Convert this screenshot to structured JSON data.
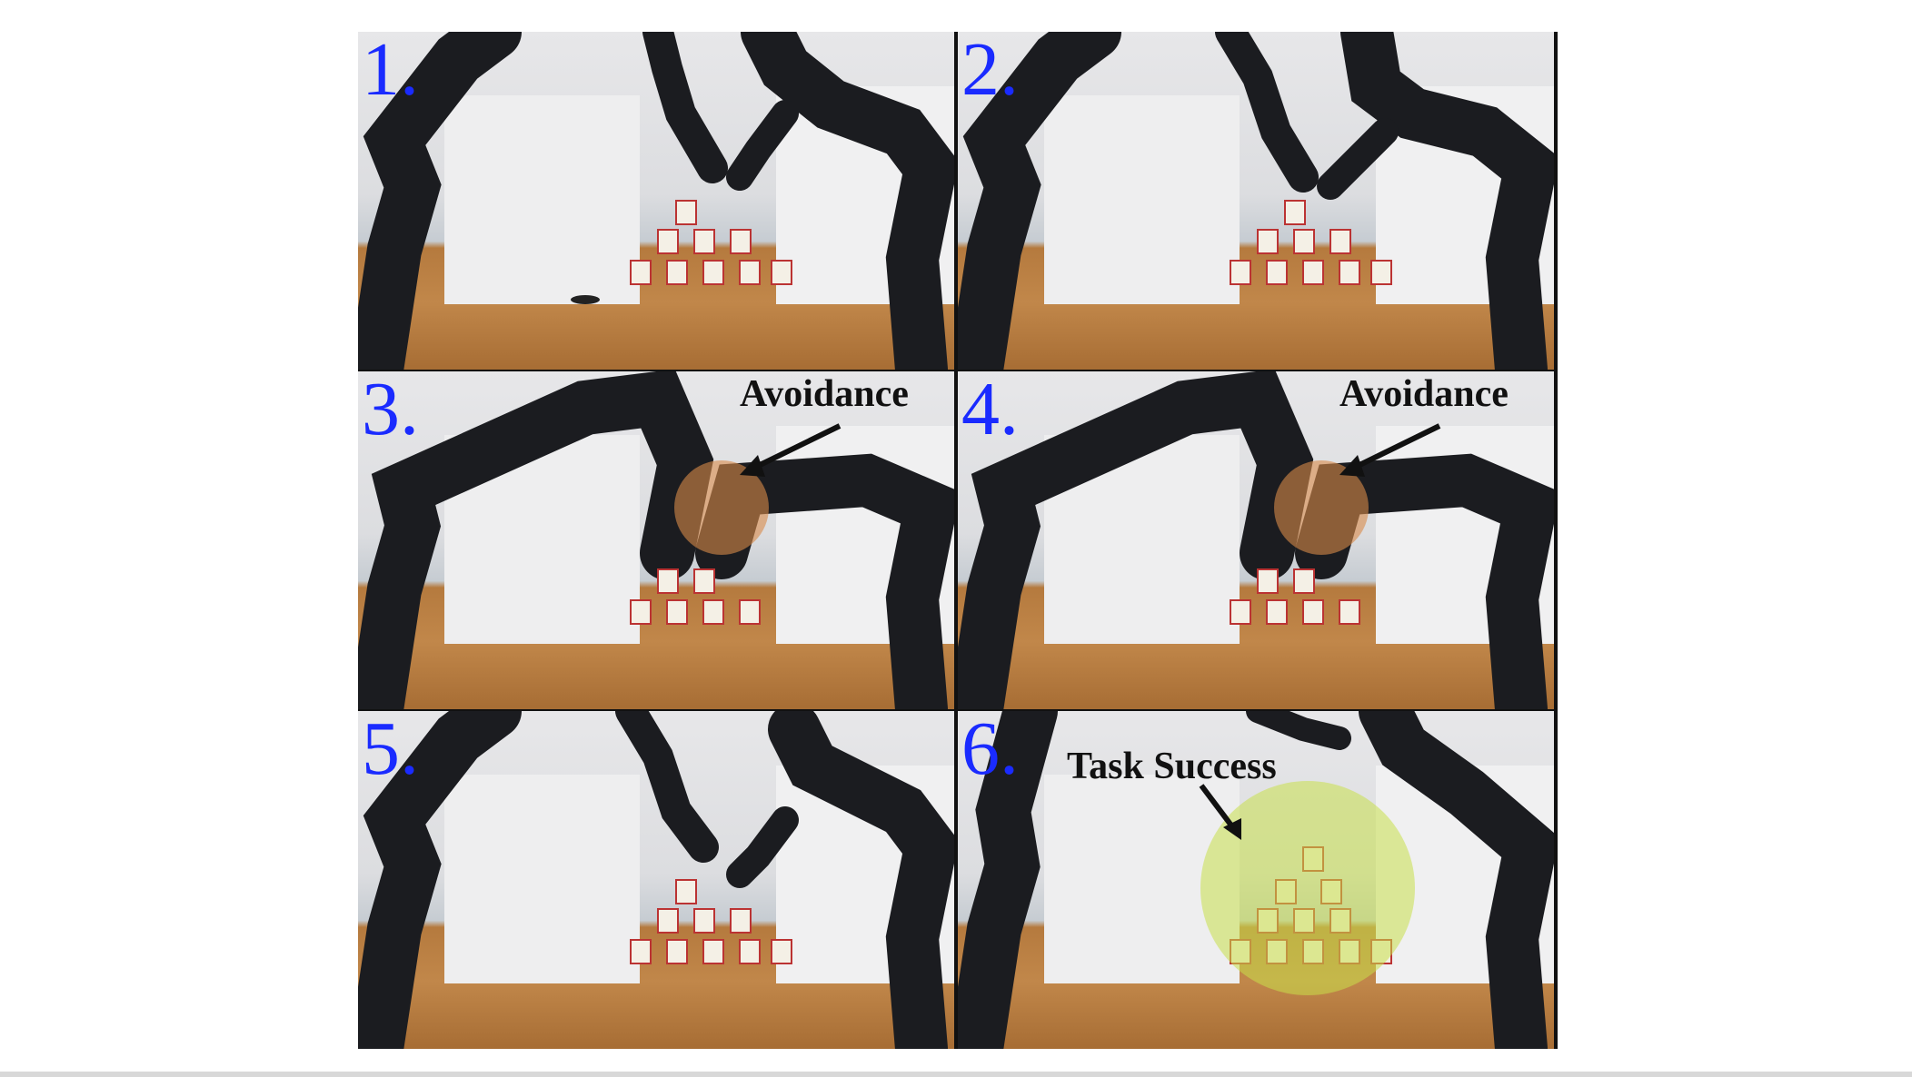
{
  "panels": [
    {
      "number": "1.",
      "annotation": ""
    },
    {
      "number": "2.",
      "annotation": ""
    },
    {
      "number": "3.",
      "annotation": "Avoidance"
    },
    {
      "number": "4.",
      "annotation": "Avoidance"
    },
    {
      "number": "5.",
      "annotation": ""
    },
    {
      "number": "6.",
      "annotation": "Task Success"
    }
  ],
  "colors": {
    "number_text": "#1a2bff",
    "avoidance_highlight": "#d98a4a",
    "success_highlight": "#c8e04a",
    "robot_arm": "#1b1c20",
    "table": "#c1874a"
  },
  "icons": [
    "robot-arm-icon",
    "cup-pyramid-icon",
    "arrow-icon"
  ]
}
